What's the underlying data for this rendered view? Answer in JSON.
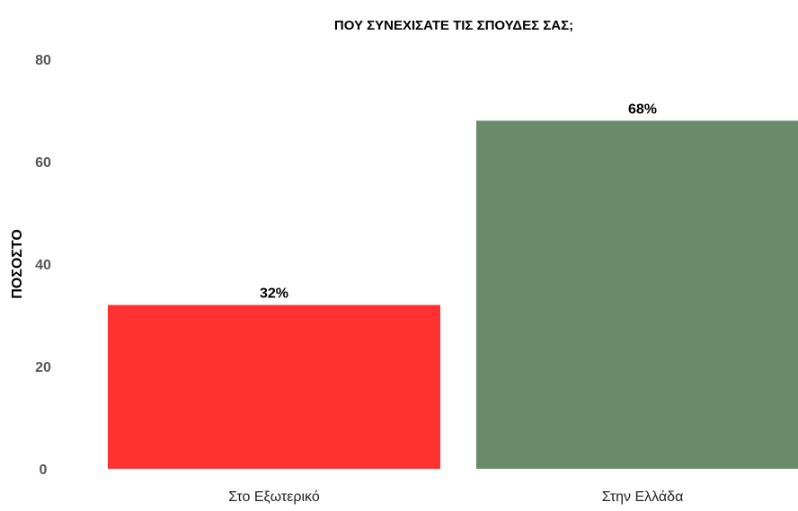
{
  "chart_data": {
    "type": "bar",
    "title": "ΠΟΥ ΣΥΝΕΧΙΣΑΤΕ ΤΙΣ ΣΠΟΥΔΕΣ ΣΑΣ;",
    "xlabel": "",
    "ylabel": "ΠΟΣΟΣΤΟ",
    "ylim": [
      0,
      80
    ],
    "yticks": [
      0,
      20,
      40,
      60,
      80
    ],
    "categories": [
      "Στο Εξωτερικό",
      "Στην Ελλάδα"
    ],
    "values": [
      32,
      68
    ],
    "data_labels": [
      "32%",
      "68%"
    ],
    "colors": [
      "#ff3131",
      "#6a8a6a"
    ],
    "grid": false,
    "legend": "none"
  }
}
